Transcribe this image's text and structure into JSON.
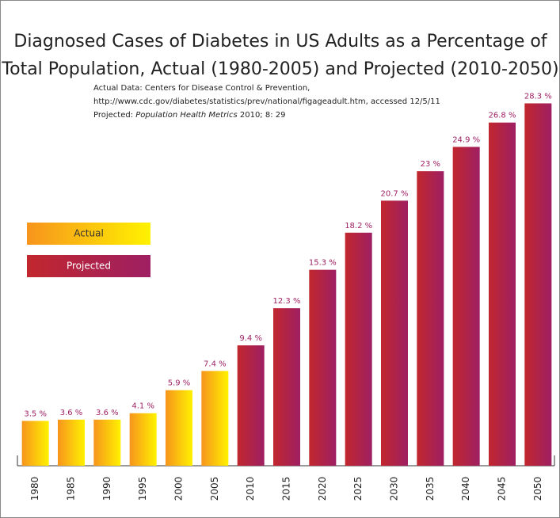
{
  "chart_data": {
    "type": "bar",
    "title": [
      "Diagnosed Cases of Diabetes in US Adults as a Percentage of",
      "Total Population, Actual (1980-2005) and Projected (2010-2050)"
    ],
    "source": [
      "Actual Data: Centers for Disease Control & Prevention,",
      "http://www.cdc.gov/diabetes/statistics/prev/national/figageadult.htm, accessed 12/5/11",
      [
        "Projected:",
        "Population Health Metrics",
        "2010; 8: 29"
      ]
    ],
    "categories": [
      "1980",
      "1985",
      "1990",
      "1995",
      "2000",
      "2005",
      "2010",
      "2015",
      "2020",
      "2025",
      "2030",
      "2035",
      "2040",
      "2045",
      "2050"
    ],
    "series": [
      {
        "name": "Actual",
        "color": [
          "#f7941d",
          "#fff200"
        ],
        "values": [
          3.5,
          3.6,
          3.6,
          4.1,
          5.9,
          7.4,
          null,
          null,
          null,
          null,
          null,
          null,
          null,
          null,
          null
        ],
        "value_labels": [
          "3.5 %",
          "3.6 %",
          "3.6 %",
          "4.1 %",
          "5.9 %",
          "7.4 %",
          null,
          null,
          null,
          null,
          null,
          null,
          null,
          null,
          null
        ]
      },
      {
        "name": "Projected",
        "color": [
          "#c1272d",
          "#9e1f63"
        ],
        "values": [
          null,
          null,
          null,
          null,
          null,
          null,
          9.4,
          12.3,
          15.3,
          18.2,
          20.7,
          23,
          24.9,
          26.8,
          28.3
        ],
        "value_labels": [
          null,
          null,
          null,
          null,
          null,
          null,
          "9.4 %",
          "12.3 %",
          "15.3 %",
          "18.2 %",
          "20.7 %",
          "23 %",
          "24.9 %",
          "26.8 %",
          "28.3 %"
        ]
      }
    ],
    "value_label_color": "#9e1f63",
    "ylim": [
      0,
      30
    ]
  }
}
